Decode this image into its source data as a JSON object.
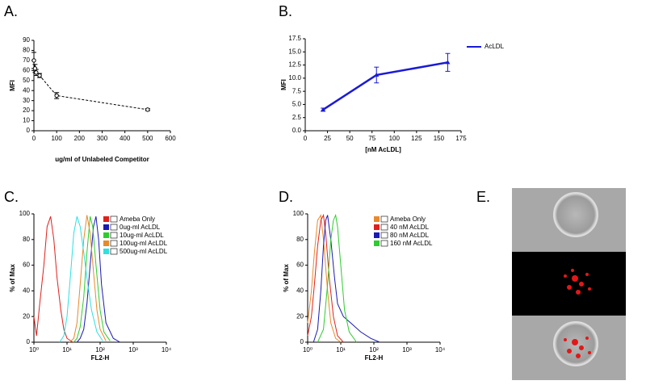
{
  "chart_data": [
    {
      "type": "line",
      "label": "A.",
      "x_label": "ug/ml of Unlabeled Competitor",
      "y_label": "MFI",
      "x": [
        0,
        5,
        10,
        25,
        100,
        500
      ],
      "series": [
        {
          "color": "#000000",
          "line_style": "dashed",
          "marker": "open-circle",
          "values": [
            70,
            62,
            58,
            55,
            35,
            21
          ],
          "errors": [
            8,
            4,
            3,
            2,
            3,
            1
          ]
        }
      ],
      "xlim": [
        0,
        600
      ],
      "xticks": [
        0,
        100,
        200,
        300,
        400,
        500,
        600
      ],
      "ylim": [
        0,
        90
      ],
      "yticks": [
        0,
        10,
        20,
        30,
        40,
        50,
        60,
        70,
        80,
        90
      ]
    },
    {
      "type": "line",
      "label": "B.",
      "x_label": "[nM AcLDL]",
      "y_label": "MFI",
      "x": [
        20,
        80,
        160
      ],
      "series": [
        {
          "name": "AcLDL",
          "color": "#1a1ad6",
          "line_style": "solid",
          "marker": "triangle",
          "values": [
            4.0,
            10.6,
            13.0
          ],
          "errors": [
            0.3,
            1.5,
            1.7
          ]
        }
      ],
      "xlim": [
        0,
        175
      ],
      "xticks": [
        0,
        25,
        50,
        75,
        100,
        125,
        150,
        175
      ],
      "ylim": [
        0,
        17.5
      ],
      "yticks": [
        {
          "value": 0,
          "label": "0.0"
        },
        2.5,
        {
          "value": 5,
          "label": "5.0"
        },
        7.5,
        {
          "value": 10,
          "label": "10.0"
        },
        12.5,
        {
          "value": 15,
          "label": "15.0"
        },
        17.5
      ],
      "legend": "upper right"
    },
    {
      "type": "line",
      "label": "C.",
      "x_label": "FL2-H",
      "y_label": "% of Max",
      "xscale": "log",
      "series": [
        {
          "name": "Ameba Only",
          "color": "#e0201c",
          "x": [
            1,
            1.2,
            1.5,
            2,
            2.5,
            3.2,
            4,
            5,
            6.5,
            8,
            10,
            15
          ],
          "values": [
            20,
            5,
            30,
            60,
            90,
            98,
            80,
            50,
            25,
            10,
            3,
            0
          ]
        },
        {
          "name": "0ug-ml  AcLDL",
          "color": "#1a1ab4",
          "x": [
            20,
            25,
            32,
            40,
            50,
            63,
            75,
            90,
            110,
            150,
            250,
            400
          ],
          "values": [
            0,
            3,
            10,
            30,
            60,
            90,
            98,
            80,
            45,
            15,
            3,
            0
          ]
        },
        {
          "name": "10ug-ml  AcLDL",
          "color": "#2ecc2e",
          "x": [
            16,
            20,
            25,
            32,
            40,
            50,
            60,
            75,
            100,
            130,
            200
          ],
          "values": [
            0,
            3,
            12,
            35,
            70,
            98,
            90,
            60,
            25,
            8,
            1
          ]
        },
        {
          "name": "100ug-ml  AcLDL",
          "color": "#e88a2a",
          "x": [
            12,
            16,
            20,
            25,
            32,
            40,
            50,
            63,
            80,
            100,
            150
          ],
          "values": [
            0,
            3,
            15,
            45,
            80,
            99,
            85,
            55,
            25,
            10,
            1
          ]
        },
        {
          "name": "500ug-ml  AcLDL",
          "color": "#2ee0e0",
          "x": [
            6,
            8,
            10,
            13,
            16,
            20,
            25,
            32,
            40,
            55,
            80,
            120
          ],
          "values": [
            0,
            5,
            20,
            55,
            85,
            98,
            90,
            70,
            50,
            25,
            8,
            1
          ]
        }
      ],
      "xlim": [
        1,
        10000
      ],
      "xticks": [
        {
          "value": 1,
          "label": "10⁰"
        },
        {
          "value": 10,
          "label": "10¹"
        },
        {
          "value": 100,
          "label": "10²"
        },
        {
          "value": 1000,
          "label": "10³"
        },
        {
          "value": 10000,
          "label": "10⁴"
        }
      ],
      "ylim": [
        0,
        100
      ],
      "yticks": [
        0,
        20,
        40,
        60,
        80,
        100
      ],
      "legend": "upper right"
    },
    {
      "type": "line",
      "label": "D.",
      "x_label": "FL2-H",
      "y_label": "% of Max",
      "xscale": "log",
      "series": [
        {
          "name": "Ameba Only",
          "color": "#e88a2a",
          "x": [
            1,
            1.3,
            1.6,
            2,
            2.5,
            3,
            4,
            5,
            7,
            10
          ],
          "values": [
            15,
            40,
            70,
            95,
            99,
            80,
            40,
            15,
            3,
            0
          ]
        },
        {
          "name": "40 nM AcLDL",
          "color": "#e0201c",
          "x": [
            1,
            1.3,
            1.6,
            2,
            2.5,
            3,
            3.5,
            4.5,
            6,
            8,
            12
          ],
          "values": [
            5,
            20,
            45,
            75,
            95,
            99,
            85,
            50,
            20,
            5,
            0
          ]
        },
        {
          "name": "80 nM AcLDL",
          "color": "#1a1ab4",
          "x": [
            1.5,
            2,
            2.5,
            3,
            3.5,
            4,
            5,
            6.5,
            8,
            12,
            20,
            40,
            80,
            150
          ],
          "values": [
            0,
            10,
            40,
            75,
            95,
            99,
            80,
            50,
            30,
            20,
            15,
            8,
            3,
            0
          ]
        },
        {
          "name": "160 nM AcLDL",
          "color": "#2ecc2e",
          "x": [
            2,
            3,
            4,
            5,
            6,
            7,
            8,
            10,
            13,
            18,
            30
          ],
          "values": [
            0,
            10,
            45,
            80,
            95,
            99,
            90,
            60,
            25,
            8,
            0
          ]
        }
      ],
      "xlim": [
        1,
        10000
      ],
      "xticks": [
        {
          "value": 1,
          "label": "10⁰"
        },
        {
          "value": 10,
          "label": "10¹"
        },
        {
          "value": 100,
          "label": "10²"
        },
        {
          "value": 1000,
          "label": "10³"
        },
        {
          "value": 10000,
          "label": "10⁴"
        }
      ],
      "ylim": [
        0,
        100
      ],
      "yticks": [
        0,
        20,
        40,
        60,
        80,
        100
      ],
      "legend": "upper right"
    }
  ],
  "image_panel": {
    "label": "E."
  }
}
